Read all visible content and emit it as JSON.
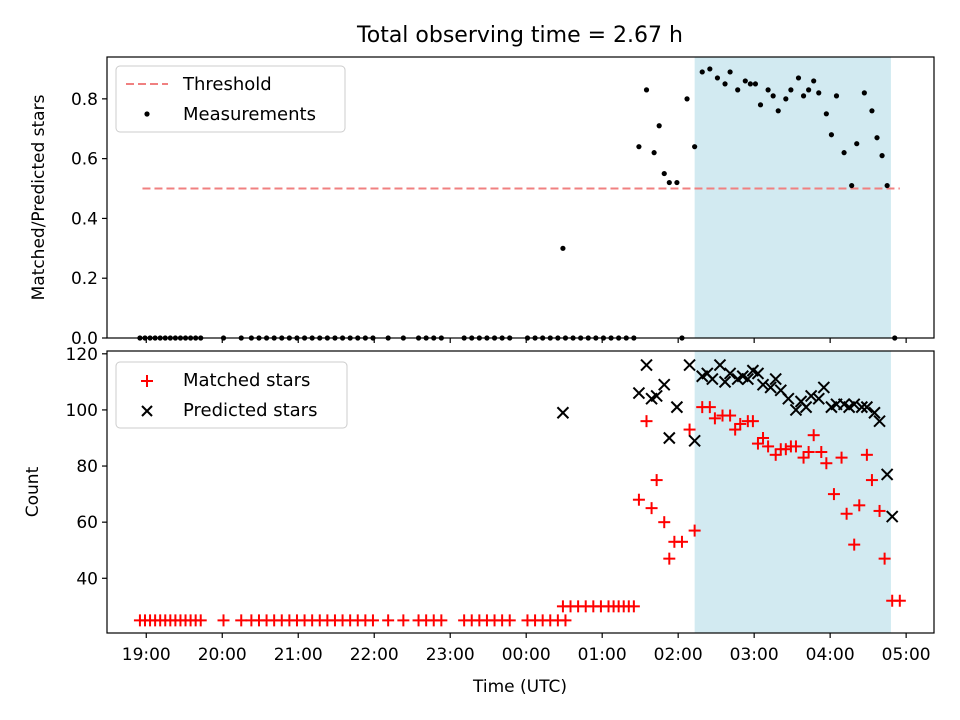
{
  "figure": {
    "title": "Total observing time = 2.67 h"
  },
  "chart_data": [
    {
      "type": "scatter",
      "title": "Total observing time = 2.67 h",
      "xlabel": "",
      "ylabel": "Matched/Predicted stars",
      "ylim": [
        0,
        0.94
      ],
      "yticks": [
        "0.0",
        "0.2",
        "0.4",
        "0.6",
        "0.8"
      ],
      "grid": false,
      "legend_position": "top-left",
      "observing_window": {
        "start": "02:13",
        "end": "04:48",
        "color": "#add8e6"
      },
      "threshold": {
        "name": "Threshold",
        "y": 0.5,
        "x_start": "18:57",
        "x_end": "04:55",
        "color": "#f08080",
        "style": "dashed"
      },
      "series": [
        {
          "name": "Measurements",
          "color": "#000000",
          "marker": "dot",
          "points": [
            [
              "18:55",
              0
            ],
            [
              "18:59",
              0
            ],
            [
              "19:03",
              0
            ],
            [
              "19:07",
              0
            ],
            [
              "19:11",
              0
            ],
            [
              "19:15",
              0
            ],
            [
              "19:19",
              0
            ],
            [
              "19:23",
              0
            ],
            [
              "19:27",
              0
            ],
            [
              "19:31",
              0
            ],
            [
              "19:35",
              0
            ],
            [
              "19:39",
              0
            ],
            [
              "19:43",
              0
            ],
            [
              "20:01",
              0
            ],
            [
              "20:15",
              0
            ],
            [
              "20:23",
              0
            ],
            [
              "20:29",
              0
            ],
            [
              "20:35",
              0
            ],
            [
              "20:41",
              0
            ],
            [
              "20:47",
              0
            ],
            [
              "20:53",
              0
            ],
            [
              "20:59",
              0
            ],
            [
              "21:05",
              0
            ],
            [
              "21:11",
              0
            ],
            [
              "21:17",
              0
            ],
            [
              "21:23",
              0
            ],
            [
              "21:29",
              0
            ],
            [
              "21:35",
              0
            ],
            [
              "21:41",
              0
            ],
            [
              "21:47",
              0
            ],
            [
              "21:53",
              0
            ],
            [
              "21:59",
              0
            ],
            [
              "22:11",
              0
            ],
            [
              "22:23",
              0
            ],
            [
              "22:35",
              0
            ],
            [
              "22:41",
              0
            ],
            [
              "22:47",
              0
            ],
            [
              "22:53",
              0
            ],
            [
              "23:11",
              0
            ],
            [
              "23:17",
              0
            ],
            [
              "23:23",
              0
            ],
            [
              "23:29",
              0
            ],
            [
              "23:35",
              0
            ],
            [
              "23:41",
              0
            ],
            [
              "23:47",
              0
            ],
            [
              "00:01",
              0
            ],
            [
              "00:07",
              0
            ],
            [
              "00:13",
              0
            ],
            [
              "00:19",
              0
            ],
            [
              "00:25",
              0
            ],
            [
              "00:31",
              0
            ],
            [
              "00:29",
              0.3
            ],
            [
              "00:37",
              0
            ],
            [
              "00:43",
              0
            ],
            [
              "00:49",
              0
            ],
            [
              "00:55",
              0
            ],
            [
              "01:01",
              0
            ],
            [
              "01:07",
              0
            ],
            [
              "01:13",
              0
            ],
            [
              "01:19",
              0
            ],
            [
              "01:25",
              0
            ],
            [
              "01:29",
              0.64
            ],
            [
              "01:35",
              0.83
            ],
            [
              "01:41",
              0.62
            ],
            [
              "01:45",
              0.71
            ],
            [
              "01:49",
              0.55
            ],
            [
              "01:53",
              0.52
            ],
            [
              "01:59",
              0.52
            ],
            [
              "02:03",
              0
            ],
            [
              "02:07",
              0.8
            ],
            [
              "02:13",
              0.64
            ],
            [
              "02:19",
              0.89
            ],
            [
              "02:25",
              0.9
            ],
            [
              "02:31",
              0.87
            ],
            [
              "02:37",
              0.85
            ],
            [
              "02:41",
              0.89
            ],
            [
              "02:47",
              0.83
            ],
            [
              "02:53",
              0.86
            ],
            [
              "02:57",
              0.85
            ],
            [
              "03:01",
              0.85
            ],
            [
              "03:05",
              0.78
            ],
            [
              "03:11",
              0.83
            ],
            [
              "03:15",
              0.81
            ],
            [
              "03:19",
              0.76
            ],
            [
              "03:25",
              0.8
            ],
            [
              "03:29",
              0.83
            ],
            [
              "03:35",
              0.87
            ],
            [
              "03:39",
              0.81
            ],
            [
              "03:43",
              0.83
            ],
            [
              "03:47",
              0.86
            ],
            [
              "03:51",
              0.82
            ],
            [
              "03:57",
              0.75
            ],
            [
              "04:01",
              0.68
            ],
            [
              "04:05",
              0.81
            ],
            [
              "04:11",
              0.62
            ],
            [
              "04:17",
              0.51
            ],
            [
              "04:21",
              0.65
            ],
            [
              "04:27",
              0.82
            ],
            [
              "04:33",
              0.76
            ],
            [
              "04:37",
              0.67
            ],
            [
              "04:41",
              0.61
            ],
            [
              "04:45",
              0.51
            ],
            [
              "04:51",
              0
            ]
          ]
        }
      ]
    },
    {
      "type": "scatter",
      "title": "",
      "xlabel": "Time (UTC)",
      "ylabel": "Count",
      "ylim": [
        20.5,
        121
      ],
      "yticks": [
        "40",
        "60",
        "80",
        "100",
        "120"
      ],
      "xticks": [
        "19:00",
        "20:00",
        "21:00",
        "22:00",
        "23:00",
        "00:00",
        "01:00",
        "02:00",
        "03:00",
        "04:00",
        "05:00"
      ],
      "xlim": [
        "18:29",
        "05:22"
      ],
      "grid": false,
      "legend_position": "top-left",
      "observing_window": {
        "start": "02:13",
        "end": "04:48",
        "color": "#add8e6"
      },
      "series": [
        {
          "name": "Matched stars",
          "color": "#ff0000",
          "marker": "plus",
          "points": [
            [
              "18:55",
              25
            ],
            [
              "18:59",
              25
            ],
            [
              "19:03",
              25
            ],
            [
              "19:07",
              25
            ],
            [
              "19:11",
              25
            ],
            [
              "19:15",
              25
            ],
            [
              "19:19",
              25
            ],
            [
              "19:23",
              25
            ],
            [
              "19:27",
              25
            ],
            [
              "19:31",
              25
            ],
            [
              "19:35",
              25
            ],
            [
              "19:39",
              25
            ],
            [
              "19:43",
              25
            ],
            [
              "20:01",
              25
            ],
            [
              "20:15",
              25
            ],
            [
              "20:23",
              25
            ],
            [
              "20:29",
              25
            ],
            [
              "20:35",
              25
            ],
            [
              "20:41",
              25
            ],
            [
              "20:47",
              25
            ],
            [
              "20:53",
              25
            ],
            [
              "20:59",
              25
            ],
            [
              "21:05",
              25
            ],
            [
              "21:11",
              25
            ],
            [
              "21:17",
              25
            ],
            [
              "21:23",
              25
            ],
            [
              "21:29",
              25
            ],
            [
              "21:35",
              25
            ],
            [
              "21:41",
              25
            ],
            [
              "21:47",
              25
            ],
            [
              "21:53",
              25
            ],
            [
              "21:59",
              25
            ],
            [
              "22:11",
              25
            ],
            [
              "22:23",
              25
            ],
            [
              "22:35",
              25
            ],
            [
              "22:41",
              25
            ],
            [
              "22:47",
              25
            ],
            [
              "22:53",
              25
            ],
            [
              "23:11",
              25
            ],
            [
              "23:17",
              25
            ],
            [
              "23:23",
              25
            ],
            [
              "23:29",
              25
            ],
            [
              "23:35",
              25
            ],
            [
              "23:41",
              25
            ],
            [
              "23:47",
              25
            ],
            [
              "00:01",
              25
            ],
            [
              "00:07",
              25
            ],
            [
              "00:13",
              25
            ],
            [
              "00:19",
              25
            ],
            [
              "00:25",
              25
            ],
            [
              "00:31",
              25
            ],
            [
              "00:29",
              30
            ],
            [
              "00:35",
              30
            ],
            [
              "00:41",
              30
            ],
            [
              "00:47",
              30
            ],
            [
              "00:53",
              30
            ],
            [
              "00:59",
              30
            ],
            [
              "01:05",
              30
            ],
            [
              "01:09",
              30
            ],
            [
              "01:13",
              30
            ],
            [
              "01:17",
              30
            ],
            [
              "01:21",
              30
            ],
            [
              "01:25",
              30
            ],
            [
              "01:29",
              68
            ],
            [
              "01:35",
              96
            ],
            [
              "01:39",
              65
            ],
            [
              "01:43",
              75
            ],
            [
              "01:49",
              60
            ],
            [
              "01:53",
              47
            ],
            [
              "01:57",
              53
            ],
            [
              "02:03",
              53
            ],
            [
              "02:09",
              93
            ],
            [
              "02:13",
              57
            ],
            [
              "02:19",
              101
            ],
            [
              "02:25",
              101
            ],
            [
              "02:29",
              97
            ],
            [
              "02:35",
              98
            ],
            [
              "02:41",
              98
            ],
            [
              "02:45",
              93
            ],
            [
              "02:49",
              95
            ],
            [
              "02:55",
              96
            ],
            [
              "02:59",
              96
            ],
            [
              "03:03",
              88
            ],
            [
              "03:07",
              90
            ],
            [
              "03:11",
              87
            ],
            [
              "03:17",
              84
            ],
            [
              "03:21",
              86
            ],
            [
              "03:25",
              86
            ],
            [
              "03:29",
              87
            ],
            [
              "03:33",
              87
            ],
            [
              "03:39",
              83
            ],
            [
              "03:43",
              85
            ],
            [
              "03:47",
              91
            ],
            [
              "03:53",
              85
            ],
            [
              "03:57",
              81
            ],
            [
              "04:03",
              70
            ],
            [
              "04:09",
              83
            ],
            [
              "04:13",
              63
            ],
            [
              "04:19",
              52
            ],
            [
              "04:23",
              66
            ],
            [
              "04:29",
              84
            ],
            [
              "04:33",
              75
            ],
            [
              "04:39",
              64
            ],
            [
              "04:43",
              47
            ],
            [
              "04:49",
              32
            ],
            [
              "04:55",
              32
            ]
          ]
        },
        {
          "name": "Predicted stars",
          "color": "#000000",
          "marker": "x",
          "points": [
            [
              "00:29",
              99
            ],
            [
              "01:29",
              106
            ],
            [
              "01:35",
              116
            ],
            [
              "01:39",
              104
            ],
            [
              "01:43",
              105
            ],
            [
              "01:49",
              109
            ],
            [
              "01:53",
              90
            ],
            [
              "01:59",
              101
            ],
            [
              "02:09",
              116
            ],
            [
              "02:13",
              89
            ],
            [
              "02:19",
              112
            ],
            [
              "02:23",
              113
            ],
            [
              "02:27",
              111
            ],
            [
              "02:33",
              116
            ],
            [
              "02:37",
              110
            ],
            [
              "02:41",
              113
            ],
            [
              "02:47",
              111
            ],
            [
              "02:51",
              112
            ],
            [
              "02:55",
              111
            ],
            [
              "02:59",
              114
            ],
            [
              "03:03",
              113
            ],
            [
              "03:07",
              109
            ],
            [
              "03:13",
              108
            ],
            [
              "03:17",
              111
            ],
            [
              "03:21",
              107
            ],
            [
              "03:27",
              104
            ],
            [
              "03:33",
              100
            ],
            [
              "03:37",
              103
            ],
            [
              "03:41",
              101
            ],
            [
              "03:45",
              105
            ],
            [
              "03:51",
              104
            ],
            [
              "03:55",
              108
            ],
            [
              "04:01",
              101
            ],
            [
              "04:05",
              102
            ],
            [
              "04:11",
              102
            ],
            [
              "04:15",
              101
            ],
            [
              "04:19",
              102
            ],
            [
              "04:25",
              101
            ],
            [
              "04:29",
              101
            ],
            [
              "04:35",
              99
            ],
            [
              "04:39",
              96
            ],
            [
              "04:45",
              77
            ],
            [
              "04:49",
              62
            ]
          ]
        }
      ]
    }
  ]
}
